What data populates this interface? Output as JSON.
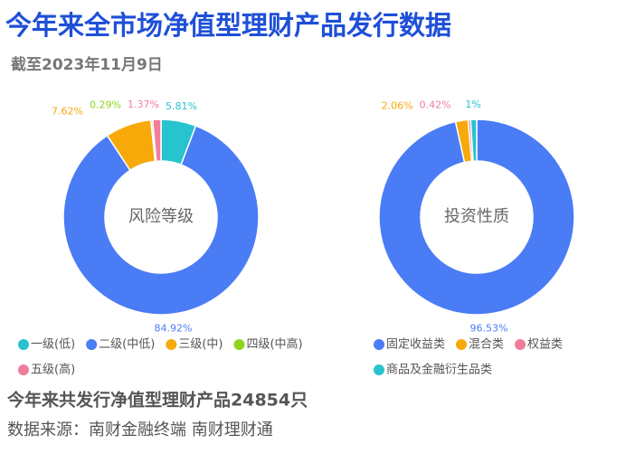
{
  "title": "今年来全市场净值型理财产品发行数据",
  "subtitle": "截至2023年11月9日",
  "chart_data": [
    {
      "type": "pie",
      "center_label": "风险等级",
      "categories": [
        "一级(低)",
        "二级(中低)",
        "三级(中)",
        "四级(中高)",
        "五级(高)"
      ],
      "values": [
        5.81,
        84.92,
        7.62,
        0.29,
        1.37
      ],
      "value_labels": [
        "5.81%",
        "84.92%",
        "7.62%",
        "0.29%",
        "1.37%"
      ],
      "colors": [
        "#27c3cf",
        "#4a7cf5",
        "#f7a90a",
        "#8fd41c",
        "#f07d9b"
      ]
    },
    {
      "type": "pie",
      "center_label": "投资性质",
      "categories": [
        "固定收益类",
        "混合类",
        "权益类",
        "商品及金融衍生品类"
      ],
      "values": [
        96.53,
        2.06,
        0.42,
        1
      ],
      "value_labels": [
        "96.53%",
        "2.06%",
        "0.42%",
        "1%"
      ],
      "colors": [
        "#4a7cf5",
        "#f7a90a",
        "#f07d9b",
        "#27c3cf"
      ]
    }
  ],
  "summary": "今年来共发行净值型理财产品24854只",
  "source": "数据来源：南财金融终端 南财理财通"
}
